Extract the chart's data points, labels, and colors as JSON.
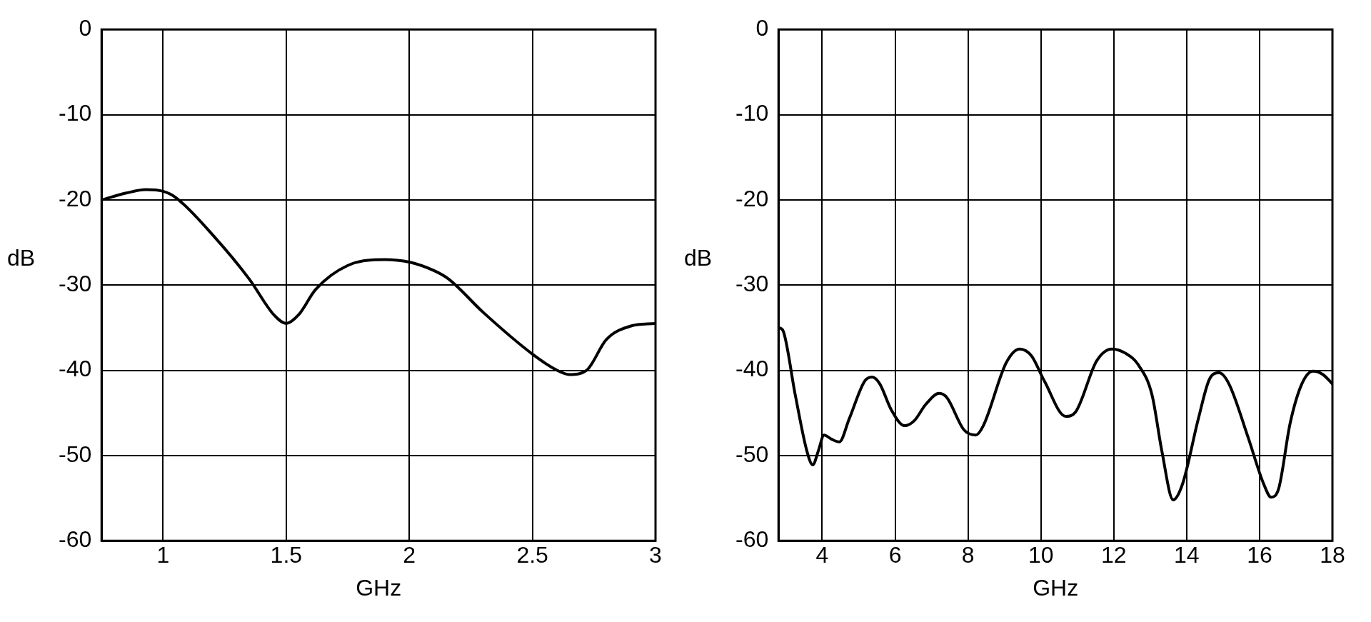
{
  "chart_data": [
    {
      "type": "line",
      "xlabel": "GHz",
      "ylabel": "dB",
      "xlim": [
        0.75,
        3
      ],
      "xticks": [
        1,
        1.5,
        2,
        2.5,
        3
      ],
      "ylim": [
        -60,
        0
      ],
      "yticks": [
        -60,
        -50,
        -40,
        -30,
        -20,
        -10,
        0
      ],
      "grid": true,
      "legend": false,
      "marker": "none",
      "line_style": "solid",
      "series": [
        {
          "color": "#000000",
          "x": [
            0.75,
            0.85,
            0.93,
            1.0,
            1.05,
            1.21,
            1.35,
            1.45,
            1.5,
            1.55,
            1.62,
            1.75,
            1.9,
            2.0,
            2.1,
            2.16,
            2.3,
            2.5,
            2.6,
            2.65,
            2.72,
            2.8,
            2.9,
            3.0
          ],
          "values": [
            -20,
            -19.2,
            -18.8,
            -19.0,
            -19.7,
            -24.4,
            -29.3,
            -33.5,
            -34.5,
            -33.5,
            -30.5,
            -27.7,
            -27,
            -27.3,
            -28.3,
            -29.3,
            -33.2,
            -38.1,
            -40,
            -40.5,
            -40,
            -36.4,
            -34.8,
            -34.5
          ]
        }
      ]
    },
    {
      "type": "line",
      "xlabel": "GHz",
      "ylabel": "dB",
      "xlim": [
        2.8,
        18
      ],
      "xticks": [
        4,
        6,
        8,
        10,
        12,
        14,
        16,
        18
      ],
      "ylim": [
        -60,
        0
      ],
      "yticks": [
        -60,
        -50,
        -40,
        -30,
        -20,
        -10,
        0
      ],
      "grid": true,
      "legend": false,
      "marker": "none",
      "line_style": "solid",
      "series": [
        {
          "color": "#000000",
          "x": [
            2.82,
            2.93,
            3.26,
            3.58,
            3.74,
            3.89,
            4.05,
            4.26,
            4.47,
            4.74,
            5.16,
            5.37,
            5.58,
            5.89,
            6.26,
            6.53,
            6.84,
            7.21,
            7.42,
            7.89,
            8.21,
            8.42,
            9.05,
            9.42,
            9.74,
            10.1,
            10.68,
            10.95,
            11.53,
            11.95,
            12.32,
            12.68,
            13.05,
            13.32,
            13.63,
            13.89,
            14.32,
            14.63,
            14.89,
            15.16,
            15.68,
            16.11,
            16.32,
            16.53,
            16.84,
            17.16,
            17.47,
            17.74,
            18
          ],
          "values": [
            -35.0,
            -35.4,
            -42.9,
            -49.5,
            -51.1,
            -49.5,
            -47.6,
            -48.1,
            -48.4,
            -45.7,
            -41.3,
            -40.8,
            -41.6,
            -44.6,
            -46.5,
            -45.9,
            -44.0,
            -42.7,
            -43.2,
            -47.0,
            -47.6,
            -46.5,
            -39.1,
            -37.5,
            -38.3,
            -41.3,
            -45.4,
            -44.9,
            -38.9,
            -37.5,
            -38.0,
            -39.4,
            -42.9,
            -49.5,
            -55.2,
            -53.3,
            -45.7,
            -41.0,
            -40.3,
            -41.6,
            -47.8,
            -53.3,
            -54.9,
            -53.8,
            -46.2,
            -41.6,
            -40.1,
            -40.5,
            -41.6
          ]
        }
      ]
    }
  ]
}
